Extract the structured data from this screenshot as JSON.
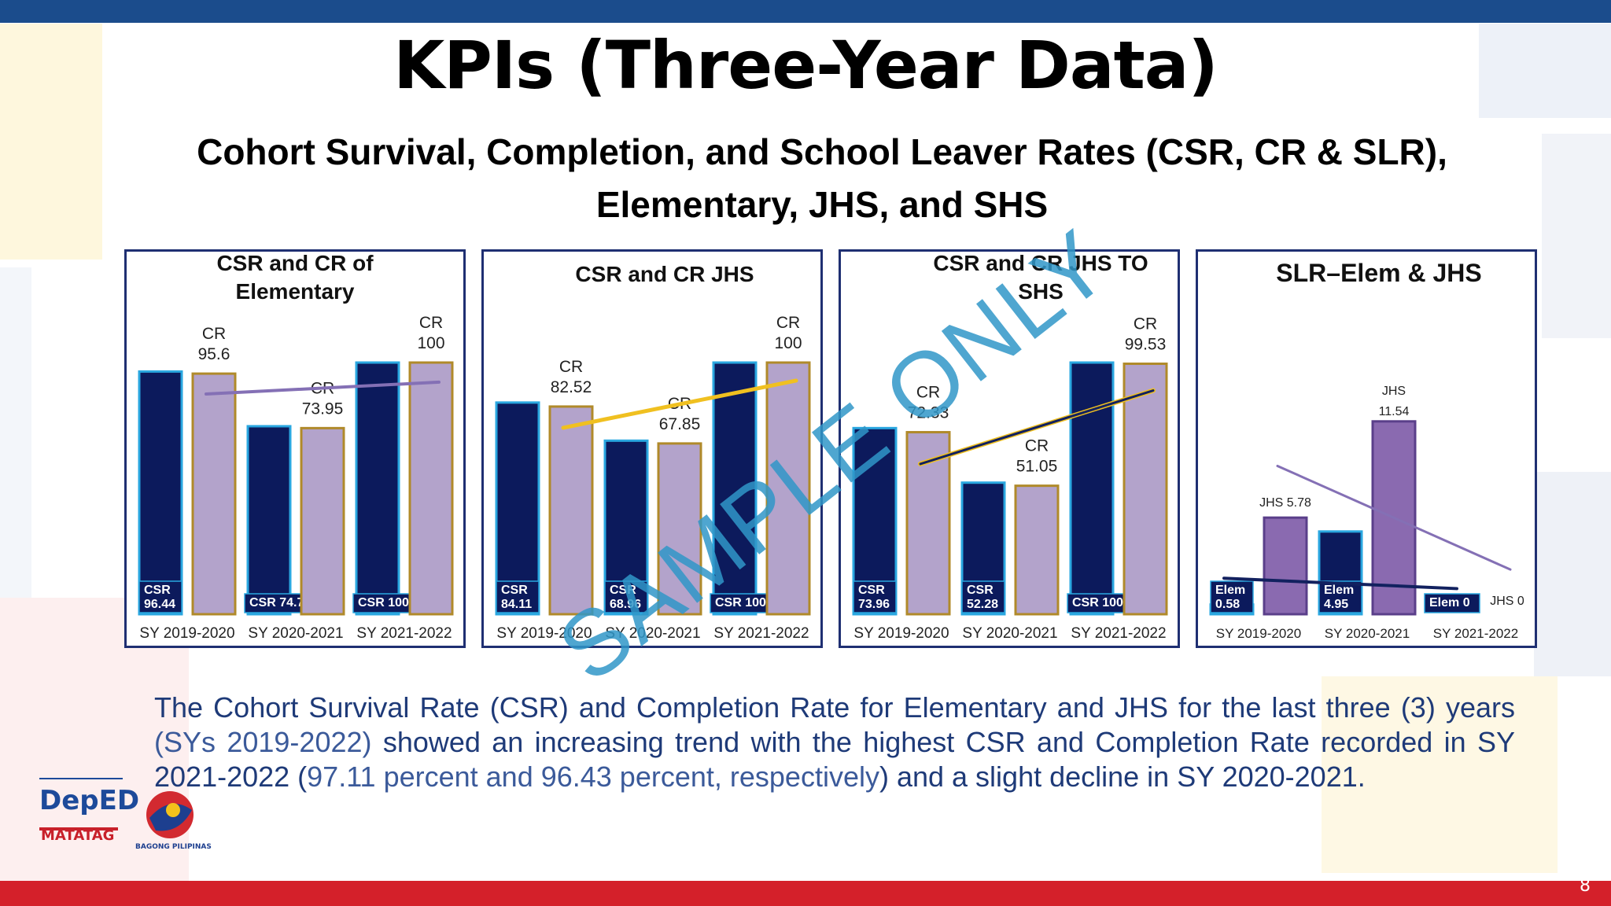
{
  "slide": {
    "title": "KPIs (Three-Year Data)",
    "subtitle_line1": "Cohort Survival, Completion, and School Leaver Rates (CSR, CR & SLR),",
    "subtitle_line2": "Elementary, JHS, and SHS",
    "paragraph_part1": "The Cohort Survival Rate (CSR) and Completion Rate for Elementary and JHS for the last three (3) years ",
    "paragraph_hl1": "(SYs 2019-2022)",
    "paragraph_part2": " showed an increasing trend with the highest CSR and Completion Rate recorded in SY 2021-2022 (",
    "paragraph_hl2": "97.11 percent and 96.43 percent, respectively",
    "paragraph_part3": ") and a slight decline in SY 2020-2021.",
    "watermark": "SAMPLE ONLY",
    "page_number": "8",
    "logo_deped": "DepED",
    "logo_matatag": "MATATAG",
    "logo_bagong": "BAGONG PILIPINAS"
  },
  "colors": {
    "top_bar": "#1b4c8c",
    "bottom_bar": "#d4202a",
    "csr_bar": "#0c1a5c",
    "cr_bar": "#b3a3cb",
    "slr_jhs_bar": "#8a6ab0",
    "panel_border": "#1f2f72",
    "trend_purple": "#8470b5",
    "trend_yellow": "#f0c020",
    "trend_navy": "#12215f"
  },
  "chart_data": [
    {
      "type": "bar",
      "title_lines": [
        "CSR and CR of",
        "Elementary"
      ],
      "categories": [
        "SY 2019-2020",
        "SY 2020-2021",
        "SY 2021-2022"
      ],
      "series": [
        {
          "name": "CSR",
          "values": [
            96.44,
            74.7,
            100
          ],
          "labels": [
            "CSR|96.44",
            "CSR 74.7",
            "CSR 100"
          ]
        },
        {
          "name": "CR",
          "values": [
            95.6,
            73.95,
            100
          ],
          "labels": [
            "CR|95.6",
            "CR|73.95",
            "CR|100"
          ]
        }
      ],
      "ylim": [
        0,
        100
      ],
      "trendline": "purple"
    },
    {
      "type": "bar",
      "title_lines": [
        "CSR and CR JHS"
      ],
      "categories": [
        "SY 2019-2020",
        "SY 2020-2021",
        "SY 2021-2022"
      ],
      "series": [
        {
          "name": "CSR",
          "values": [
            84.11,
            68.96,
            100
          ],
          "labels": [
            "CSR|84.11",
            "CSR|68.96",
            "CSR 100"
          ]
        },
        {
          "name": "CR",
          "values": [
            82.52,
            67.85,
            100
          ],
          "labels": [
            "CR|82.52",
            "CR|67.85",
            "CR|100"
          ]
        }
      ],
      "ylim": [
        0,
        100
      ],
      "trendline": "yellow"
    },
    {
      "type": "bar",
      "title_lines": [
        "CSR and CR JHS TO",
        "SHS"
      ],
      "categories": [
        "SY 2019-2020",
        "SY 2020-2021",
        "SY 2021-2022"
      ],
      "series": [
        {
          "name": "CSR",
          "values": [
            73.96,
            52.28,
            100
          ],
          "labels": [
            "CSR|73.96",
            "CSR|52.28",
            "CSR 100"
          ]
        },
        {
          "name": "CR",
          "values": [
            72.33,
            51.05,
            99.53
          ],
          "labels": [
            "CR|72.33",
            "CR|51.05",
            "CR|99.53"
          ]
        }
      ],
      "ylim": [
        0,
        100
      ],
      "trendline": "yellow-navy"
    },
    {
      "type": "bar",
      "title_lines": [
        "SLR–Elem & JHS"
      ],
      "categories": [
        "SY 2019-2020",
        "SY 2020-2021",
        "SY 2021-2022"
      ],
      "series": [
        {
          "name": "Elem",
          "values": [
            0.58,
            4.95,
            0
          ],
          "labels": [
            "Elem|0.58",
            "Elem|4.95",
            "Elem 0"
          ]
        },
        {
          "name": "JHS",
          "values": [
            5.78,
            11.54,
            0
          ],
          "labels": [
            "JHS 5.78",
            "JHS|11.54",
            "JHS 0"
          ]
        }
      ],
      "ylim": [
        0,
        16
      ],
      "trendline": "purple-navy"
    }
  ]
}
